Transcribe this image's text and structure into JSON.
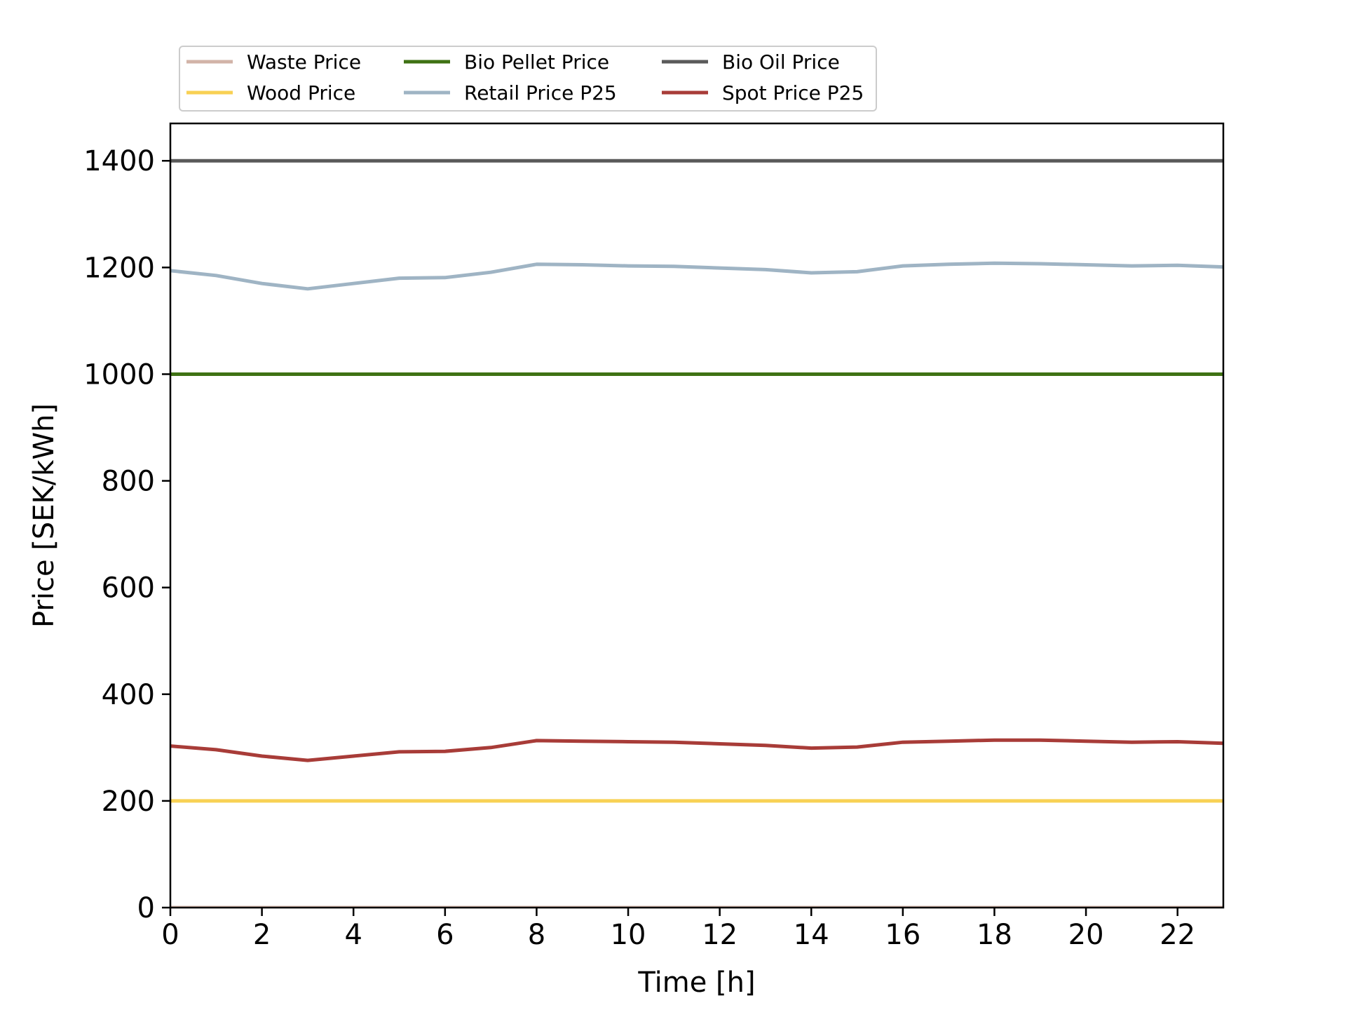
{
  "chart_data": {
    "type": "line",
    "title": "",
    "xlabel": "Time [h]",
    "ylabel": "Price [SEK/kWh]",
    "xlim": [
      0,
      23
    ],
    "ylim": [
      0,
      1470
    ],
    "xticks": [
      0,
      2,
      4,
      6,
      8,
      10,
      12,
      14,
      16,
      18,
      20,
      22
    ],
    "yticks": [
      0,
      200,
      400,
      600,
      800,
      1000,
      1200,
      1400
    ],
    "grid": false,
    "legend_position": "top-left, above plot",
    "x": [
      0,
      1,
      2,
      3,
      4,
      5,
      6,
      7,
      8,
      9,
      10,
      11,
      12,
      13,
      14,
      15,
      16,
      17,
      18,
      19,
      20,
      21,
      22,
      23
    ],
    "series": [
      {
        "name": "Waste Price",
        "color": "#d2b4a8",
        "values": [
          0,
          0,
          0,
          0,
          0,
          0,
          0,
          0,
          0,
          0,
          0,
          0,
          0,
          0,
          0,
          0,
          0,
          0,
          0,
          0,
          0,
          0,
          0,
          0
        ]
      },
      {
        "name": "Wood Price",
        "color": "#f8d154",
        "values": [
          200,
          200,
          200,
          200,
          200,
          200,
          200,
          200,
          200,
          200,
          200,
          200,
          200,
          200,
          200,
          200,
          200,
          200,
          200,
          200,
          200,
          200,
          200,
          200
        ]
      },
      {
        "name": "Bio Pellet Price",
        "color": "#3f7214",
        "values": [
          1000,
          1000,
          1000,
          1000,
          1000,
          1000,
          1000,
          1000,
          1000,
          1000,
          1000,
          1000,
          1000,
          1000,
          1000,
          1000,
          1000,
          1000,
          1000,
          1000,
          1000,
          1000,
          1000,
          1000
        ]
      },
      {
        "name": "Retail Price P25",
        "color": "#9fb4c4",
        "values": [
          1194,
          1185,
          1170,
          1160,
          1170,
          1180,
          1181,
          1191,
          1206,
          1205,
          1203,
          1202,
          1199,
          1196,
          1190,
          1192,
          1203,
          1206,
          1208,
          1207,
          1205,
          1203,
          1204,
          1201
        ]
      },
      {
        "name": "Bio Oil Price",
        "color": "#5a5a5a",
        "values": [
          1400,
          1400,
          1400,
          1400,
          1400,
          1400,
          1400,
          1400,
          1400,
          1400,
          1400,
          1400,
          1400,
          1400,
          1400,
          1400,
          1400,
          1400,
          1400,
          1400,
          1400,
          1400,
          1400,
          1400
        ]
      },
      {
        "name": "Spot Price P25",
        "color": "#a83c38",
        "values": [
          303,
          296,
          284,
          276,
          284,
          292,
          293,
          300,
          313,
          312,
          311,
          310,
          307,
          304,
          299,
          301,
          310,
          312,
          314,
          314,
          312,
          310,
          311,
          308
        ]
      }
    ]
  }
}
